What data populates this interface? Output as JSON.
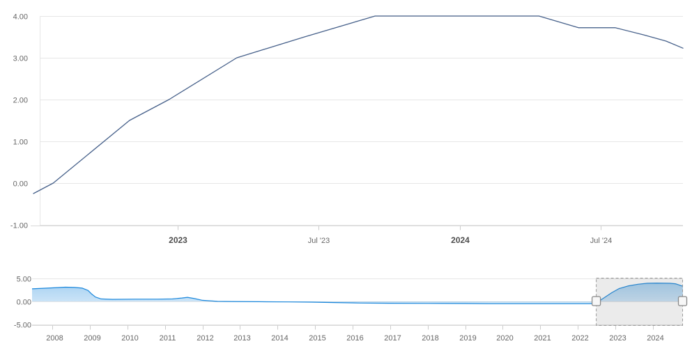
{
  "colors": {
    "background": "#ffffff",
    "grid": "#e6e6e6",
    "axis_line": "#d8d8d8",
    "tick": "#cccccc",
    "label": "#666666",
    "label_bold": "#4d4d4d",
    "main_line": "#46608a",
    "nav_line": "#1a87dc",
    "nav_fill_top": "rgba(26,135,220,0.42)",
    "nav_fill_bottom": "rgba(26,135,220,0.04)",
    "selection_mask": "rgba(110,110,110,0.14)",
    "selection_border": "#999999",
    "handle_fill": "#f7f7f7",
    "handle_stroke": "#888888"
  },
  "chart_data": [
    {
      "id": "main",
      "type": "line",
      "title": "",
      "xlabel": "",
      "ylabel": "",
      "grid": true,
      "legend": false,
      "x_unit": "decimal_year",
      "xlim": [
        2022.49,
        2024.79
      ],
      "ylim": [
        -1,
        4
      ],
      "yticks": [
        {
          "value": 4,
          "label": "4.00"
        },
        {
          "value": 3,
          "label": "3.00"
        },
        {
          "value": 2,
          "label": "2.00"
        },
        {
          "value": 1,
          "label": "1.00"
        },
        {
          "value": 0,
          "label": "0.00"
        },
        {
          "value": -1,
          "label": "-1.00"
        }
      ],
      "xticks": [
        {
          "t": 2023.0,
          "label": "2023",
          "bold": true
        },
        {
          "t": 2023.5,
          "label": "Jul '23",
          "bold": false
        },
        {
          "t": 2024.0,
          "label": "2024",
          "bold": true
        },
        {
          "t": 2024.5,
          "label": "Jul '24",
          "bold": false
        }
      ],
      "series": [
        {
          "x": [
            2022.49,
            2022.56,
            2022.83,
            2022.97,
            2023.21,
            2023.45,
            2023.7,
            2024.28,
            2024.42,
            2024.55,
            2024.65,
            2024.73,
            2024.79
          ],
          "y": [
            -0.25,
            0.0,
            1.5,
            2.0,
            3.0,
            3.5,
            4.0,
            4.0,
            3.72,
            3.72,
            3.55,
            3.4,
            3.23
          ]
        }
      ]
    },
    {
      "id": "navigator",
      "type": "area",
      "title": "",
      "xlabel": "",
      "ylabel": "",
      "grid": true,
      "legend": false,
      "x_unit": "decimal_year",
      "xlim": [
        2007.46,
        2024.8
      ],
      "ylim": [
        -5,
        5
      ],
      "area_baseline": 0,
      "yticks": [
        {
          "value": 5,
          "label": "5.00"
        },
        {
          "value": 0,
          "label": "0.00"
        },
        {
          "value": -5,
          "label": "-5.00"
        }
      ],
      "xticks": [
        {
          "t": 2008,
          "label": "2008"
        },
        {
          "t": 2009,
          "label": "2009"
        },
        {
          "t": 2010,
          "label": "2010"
        },
        {
          "t": 2011,
          "label": "2011"
        },
        {
          "t": 2012,
          "label": "2012"
        },
        {
          "t": 2013,
          "label": "2013"
        },
        {
          "t": 2014,
          "label": "2014"
        },
        {
          "t": 2015,
          "label": "2015"
        },
        {
          "t": 2016,
          "label": "2016"
        },
        {
          "t": 2017,
          "label": "2017"
        },
        {
          "t": 2018,
          "label": "2018"
        },
        {
          "t": 2019,
          "label": "2019"
        },
        {
          "t": 2020,
          "label": "2020"
        },
        {
          "t": 2021,
          "label": "2021"
        },
        {
          "t": 2022,
          "label": "2022"
        },
        {
          "t": 2023,
          "label": "2023"
        },
        {
          "t": 2024,
          "label": "2024"
        }
      ],
      "series": [
        {
          "x": [
            2007.46,
            2008.0,
            2008.35,
            2008.6,
            2008.8,
            2008.95,
            2009.05,
            2009.15,
            2009.3,
            2009.6,
            2010.2,
            2010.8,
            2011.2,
            2011.45,
            2011.6,
            2011.8,
            2012.0,
            2012.4,
            2012.8,
            2013.5,
            2014.3,
            2014.9,
            2015.5,
            2016.2,
            2017.0,
            2018.0,
            2019.0,
            2019.6,
            2020.5,
            2021.5,
            2022.3,
            2022.45,
            2022.55,
            2022.7,
            2022.9,
            2023.1,
            2023.35,
            2023.6,
            2023.85,
            2024.1,
            2024.45,
            2024.6,
            2024.8
          ],
          "y": [
            2.75,
            2.95,
            3.1,
            3.05,
            2.9,
            2.4,
            1.6,
            0.95,
            0.55,
            0.45,
            0.5,
            0.5,
            0.55,
            0.75,
            0.9,
            0.6,
            0.25,
            0.02,
            -0.02,
            -0.06,
            -0.1,
            -0.15,
            -0.25,
            -0.35,
            -0.4,
            -0.42,
            -0.45,
            -0.5,
            -0.5,
            -0.5,
            -0.5,
            -0.45,
            0.0,
            0.8,
            1.9,
            2.8,
            3.4,
            3.75,
            3.95,
            4.0,
            3.95,
            3.85,
            3.3
          ]
        }
      ],
      "selection": {
        "from": 2022.49,
        "to": 2024.79
      }
    }
  ]
}
